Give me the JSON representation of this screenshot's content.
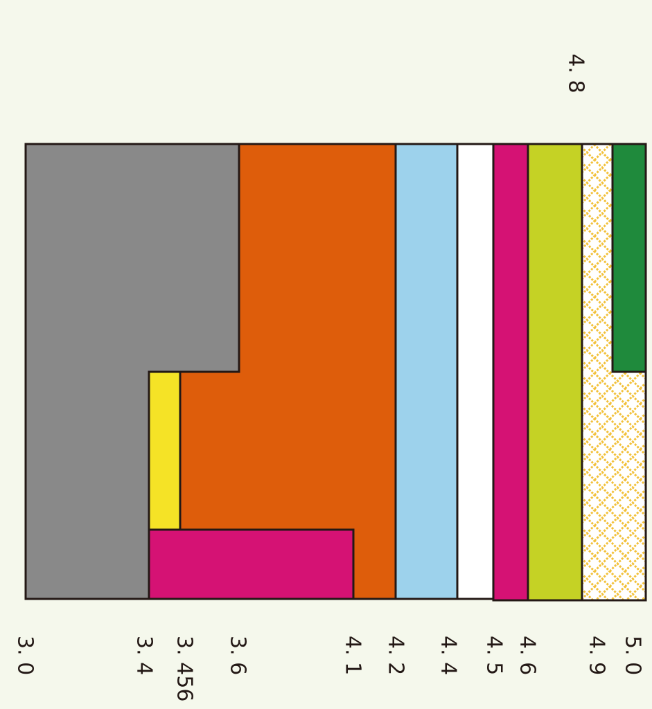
{
  "top_label": "4. 8",
  "bottom_labels": [
    "3. 0",
    "3. 4",
    "3. 456",
    "3. 6",
    "4. 1",
    "4. 2",
    "4. 4",
    "4. 5",
    "4. 6",
    "4. 9",
    "5. 0"
  ]
}
